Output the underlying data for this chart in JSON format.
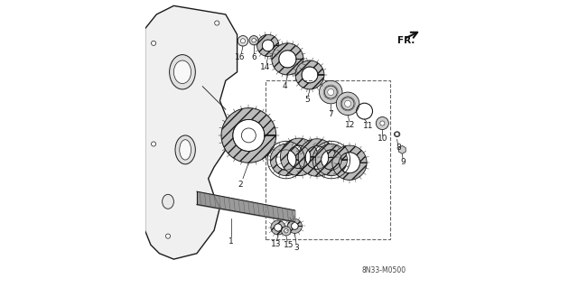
{
  "title": "",
  "bg_color": "#ffffff",
  "diagram_code": "8N33-M0500",
  "fr_label": "FR.",
  "fig_width": 6.4,
  "fig_height": 3.19,
  "dpi": 100,
  "line_color": "#1a1a1a",
  "text_color": "#1a1a1a",
  "gear_color": "#555555",
  "shaft_color": "#333333"
}
